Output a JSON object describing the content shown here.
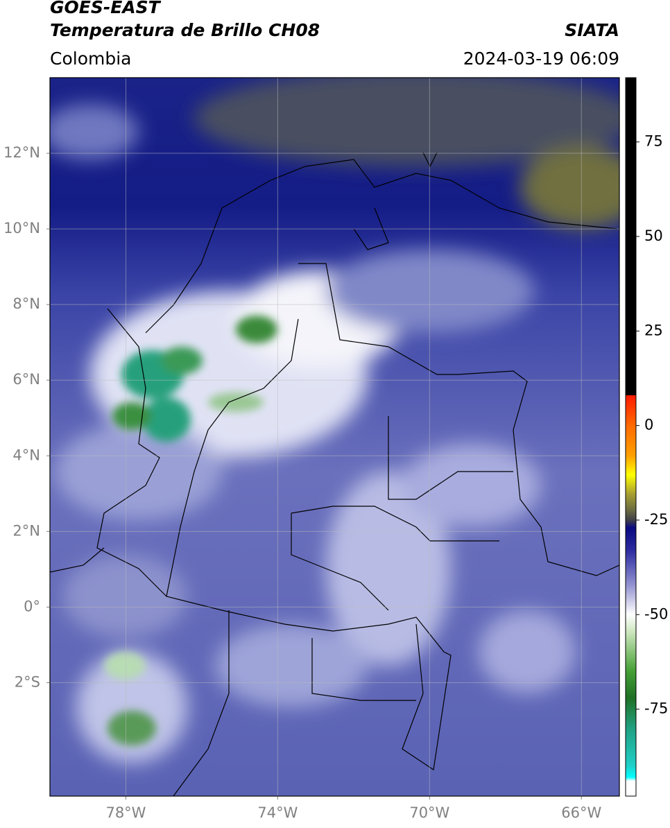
{
  "chart_data": {
    "type": "map",
    "title": "GOES-EAST",
    "subtitle": "Temperatura de Brillo CH08",
    "source": "SIATA",
    "region": "Colombia",
    "timestamp": "2024-03-19 06:09",
    "xlim": [
      -80,
      -65
    ],
    "ylim": [
      -5,
      14
    ],
    "xticks": [
      {
        "value": -78,
        "label": "78°W"
      },
      {
        "value": -74,
        "label": "74°W"
      },
      {
        "value": -70,
        "label": "70°W"
      },
      {
        "value": -66,
        "label": "66°W"
      }
    ],
    "yticks": [
      {
        "value": -2,
        "label": "2°S"
      },
      {
        "value": 0,
        "label": "0°"
      },
      {
        "value": 2,
        "label": "2°N"
      },
      {
        "value": 4,
        "label": "4°N"
      },
      {
        "value": 6,
        "label": "6°N"
      },
      {
        "value": 8,
        "label": "8°N"
      },
      {
        "value": 10,
        "label": "10°N"
      },
      {
        "value": 12,
        "label": "12°N"
      }
    ],
    "grid": true,
    "colorbar": {
      "lim": [
        -98,
        92
      ],
      "ticks": [
        75,
        50,
        25,
        0,
        -25,
        -50,
        -75
      ],
      "stops": [
        {
          "value": 92,
          "color": "#000000"
        },
        {
          "value": 8,
          "color": "#000000"
        },
        {
          "value": 8,
          "color": "#ff1a00"
        },
        {
          "value": 0,
          "color": "#ff6a00"
        },
        {
          "value": -8,
          "color": "#ffa000"
        },
        {
          "value": -13,
          "color": "#ffff00"
        },
        {
          "value": -18,
          "color": "#a8a030"
        },
        {
          "value": -22,
          "color": "#707040"
        },
        {
          "value": -25,
          "color": "#404048"
        },
        {
          "value": -27,
          "color": "#0a0a80"
        },
        {
          "value": -33,
          "color": "#2c2ca0"
        },
        {
          "value": -42,
          "color": "#9090d0"
        },
        {
          "value": -50,
          "color": "#ffffff"
        },
        {
          "value": -55,
          "color": "#c8e4b8"
        },
        {
          "value": -65,
          "color": "#44a034"
        },
        {
          "value": -72,
          "color": "#207024"
        },
        {
          "value": -80,
          "color": "#20a080"
        },
        {
          "value": -90,
          "color": "#20d0c8"
        },
        {
          "value": -93,
          "color": "#00ffff"
        },
        {
          "value": -94,
          "color": "#ffffff"
        },
        {
          "value": -98,
          "color": "#ffffff"
        }
      ]
    }
  }
}
